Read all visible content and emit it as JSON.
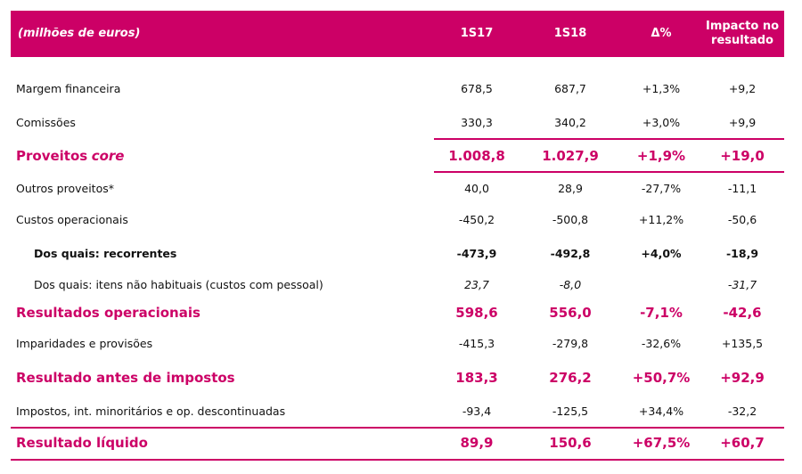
{
  "table": {
    "header": [
      "(milhões de euros)",
      "1S17",
      "1S18",
      "Δ%",
      "Impacto no resultado"
    ],
    "rows": [
      {
        "label": [
          "Margem financeira"
        ],
        "values": [
          "678,5",
          "687,7",
          "+1,3%",
          "+9,2"
        ]
      },
      {
        "label": [
          "Comissões"
        ],
        "values": [
          "330,3",
          "340,2",
          "+3,0%",
          "+9,9"
        ]
      },
      {
        "label": [
          "Proveitos",
          "core"
        ],
        "values": [
          "1.008,8",
          "1.027,9",
          "+1,9%",
          "+19,0"
        ]
      },
      {
        "label": [
          "Outros proveitos*"
        ],
        "values": [
          "40,0",
          "28,9",
          "-27,7%",
          "-11,1"
        ]
      },
      {
        "label": [
          "Custos operacionais"
        ],
        "values": [
          "-450,2",
          "-500,8",
          "+11,2%",
          "-50,6"
        ]
      },
      {
        "label": [
          "Dos quais: recorrentes"
        ],
        "values": [
          "-473,9",
          "-492,8",
          "+4,0%",
          "-18,9"
        ]
      },
      {
        "label": [
          "Dos quais: itens não habituais (custos com pessoal)"
        ],
        "values": [
          "23,7",
          "-8,0",
          null,
          "-31,7"
        ]
      },
      {
        "label": [
          "Resultados operacionais"
        ],
        "values": [
          "598,6",
          "556,0",
          "-7,1%",
          "-42,6"
        ]
      },
      {
        "label": [
          "Imparidades e provisões"
        ],
        "values": [
          "-415,3",
          "-279,8",
          "-32,6%",
          "+135,5"
        ]
      },
      {
        "label": [
          "Resultado antes de impostos"
        ],
        "values": [
          "183,3",
          "276,2",
          "+50,7%",
          "+92,9"
        ]
      },
      {
        "label": [
          "Impostos, int. minoritários e op. descontinuadas"
        ],
        "values": [
          "-93,4",
          "-125,5",
          "+34,4%",
          "-32,2"
        ]
      },
      {
        "label": [
          "Resultado líquido"
        ],
        "values": [
          "89,9",
          "150,6",
          "+67,5%",
          "+60,7"
        ]
      }
    ]
  }
}
